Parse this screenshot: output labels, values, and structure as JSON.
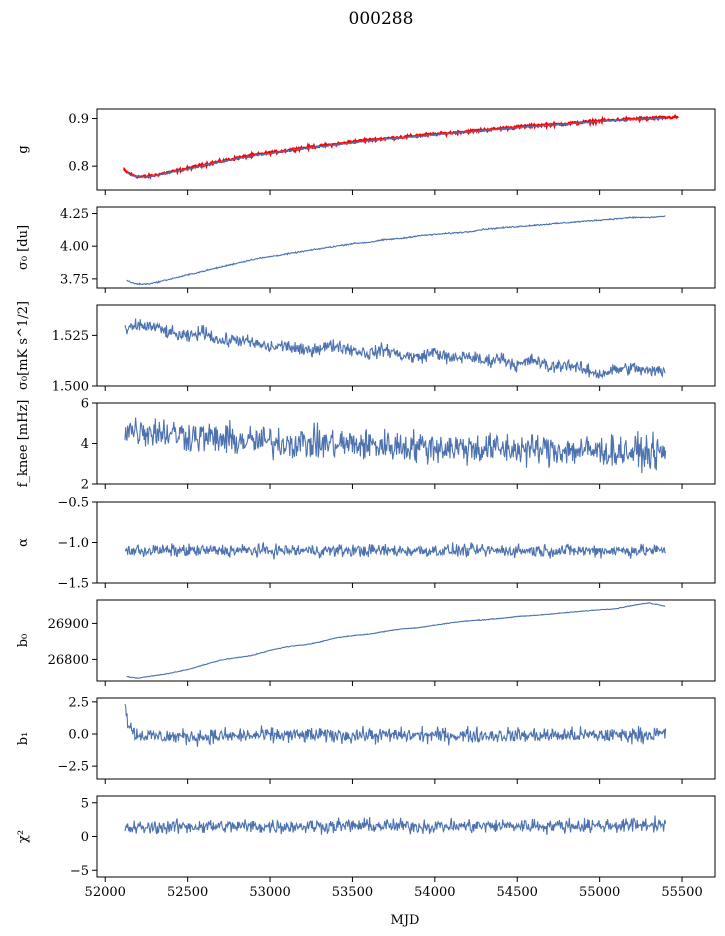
{
  "title": "000288",
  "xlabel": "MJD",
  "colors": {
    "series": "#4c72b0",
    "reference": "#ff0000",
    "axes": "#000000"
  },
  "chart_data": [
    {
      "type": "line",
      "ylabel": "g",
      "xlim": [
        51950,
        55700
      ],
      "ylim": [
        0.75,
        0.92
      ],
      "yticks": [
        0.8,
        0.9
      ],
      "ytick_labels": [
        "0.8",
        "0.9"
      ],
      "series": [
        {
          "color": "#ff0000",
          "x": [
            52110,
            52120,
            52160,
            52200,
            52250,
            52300,
            52400,
            52500,
            52600,
            52700,
            52800,
            52900,
            53000,
            53100,
            53200,
            53300,
            53400,
            53500,
            53600,
            53700,
            53800,
            53900,
            54000,
            54100,
            54200,
            54300,
            54400,
            54500,
            54600,
            54700,
            54800,
            54900,
            55000,
            55100,
            55200,
            55300,
            55400,
            55480
          ],
          "y": [
            0.795,
            0.79,
            0.782,
            0.778,
            0.778,
            0.781,
            0.788,
            0.795,
            0.803,
            0.81,
            0.817,
            0.823,
            0.828,
            0.833,
            0.838,
            0.842,
            0.846,
            0.851,
            0.855,
            0.858,
            0.861,
            0.864,
            0.867,
            0.87,
            0.873,
            0.876,
            0.879,
            0.882,
            0.885,
            0.887,
            0.889,
            0.892,
            0.895,
            0.897,
            0.899,
            0.9,
            0.902,
            0.903
          ],
          "noise": 0.002
        },
        {
          "color": "#4c72b0",
          "x": [
            52130,
            52160,
            52200,
            52250,
            52300,
            52400,
            52500,
            52600,
            52700,
            52800,
            52900,
            53000,
            53100,
            53200,
            53300,
            53400,
            53500,
            53600,
            53700,
            53800,
            53900,
            54000,
            54100,
            54200,
            54300,
            54400,
            54500,
            54600,
            54700,
            54800,
            54900,
            55000,
            55100,
            55200,
            55300,
            55400
          ],
          "y": [
            0.788,
            0.78,
            0.777,
            0.777,
            0.78,
            0.787,
            0.794,
            0.802,
            0.809,
            0.816,
            0.822,
            0.827,
            0.832,
            0.837,
            0.841,
            0.845,
            0.849,
            0.853,
            0.857,
            0.86,
            0.863,
            0.866,
            0.869,
            0.872,
            0.875,
            0.878,
            0.881,
            0.884,
            0.886,
            0.888,
            0.891,
            0.894,
            0.896,
            0.898,
            0.899,
            0.901
          ],
          "noise": 0.001
        }
      ]
    },
    {
      "type": "line",
      "ylabel": "σ₀ [du]",
      "xlim": [
        51950,
        55700
      ],
      "ylim": [
        3.68,
        4.3
      ],
      "yticks": [
        3.75,
        4.0,
        4.25
      ],
      "ytick_labels": [
        "3.75",
        "4.00",
        "4.25"
      ],
      "series": [
        {
          "color": "#4c72b0",
          "x": [
            52130,
            52160,
            52200,
            52250,
            52300,
            52400,
            52500,
            52600,
            52700,
            52800,
            52900,
            53000,
            53100,
            53200,
            53300,
            53400,
            53500,
            53600,
            53700,
            53800,
            53900,
            54000,
            54100,
            54200,
            54300,
            54400,
            54500,
            54600,
            54700,
            54800,
            54900,
            55000,
            55100,
            55200,
            55300,
            55400
          ],
          "y": [
            3.74,
            3.72,
            3.71,
            3.71,
            3.72,
            3.75,
            3.78,
            3.81,
            3.84,
            3.87,
            3.9,
            3.92,
            3.94,
            3.96,
            3.98,
            4.0,
            4.02,
            4.03,
            4.05,
            4.06,
            4.08,
            4.09,
            4.1,
            4.11,
            4.13,
            4.14,
            4.15,
            4.16,
            4.17,
            4.18,
            4.19,
            4.2,
            4.21,
            4.22,
            4.22,
            4.23
          ],
          "noise": 0.004
        }
      ]
    },
    {
      "type": "line",
      "ylabel": "σ₀[mK s^1/2]",
      "xlim": [
        51950,
        55700
      ],
      "ylim": [
        1.5,
        1.54
      ],
      "yticks": [
        1.5,
        1.525
      ],
      "ytick_labels": [
        "1.500",
        "1.525"
      ],
      "series": [
        {
          "color": "#4c72b0",
          "x": [
            52120,
            52200,
            52300,
            52400,
            52500,
            52600,
            52700,
            52800,
            52900,
            53000,
            53100,
            53200,
            53300,
            53400,
            53500,
            53600,
            53700,
            53800,
            53900,
            54000,
            54100,
            54200,
            54300,
            54400,
            54500,
            54600,
            54700,
            54800,
            54900,
            55000,
            55100,
            55200,
            55300,
            55400
          ],
          "y": [
            1.527,
            1.53,
            1.529,
            1.526,
            1.524,
            1.527,
            1.522,
            1.523,
            1.521,
            1.519,
            1.52,
            1.517,
            1.519,
            1.52,
            1.518,
            1.516,
            1.518,
            1.515,
            1.514,
            1.517,
            1.513,
            1.515,
            1.512,
            1.514,
            1.51,
            1.513,
            1.509,
            1.511,
            1.508,
            1.506,
            1.508,
            1.509,
            1.507,
            1.508
          ],
          "noise": 0.0025
        }
      ]
    },
    {
      "type": "line",
      "ylabel": "f_knee [mHz]",
      "xlim": [
        51950,
        55700
      ],
      "ylim": [
        2,
        6
      ],
      "yticks": [
        2,
        4,
        6
      ],
      "ytick_labels": [
        "2",
        "4",
        "6"
      ],
      "series": [
        {
          "color": "#4c72b0",
          "x": [
            52120,
            52300,
            52500,
            52700,
            52900,
            53100,
            53300,
            53500,
            53700,
            53900,
            54100,
            54300,
            54500,
            54700,
            54900,
            55100,
            55300,
            55400
          ],
          "y": [
            4.7,
            4.6,
            4.4,
            4.2,
            4.1,
            4.05,
            4.0,
            3.95,
            3.9,
            3.85,
            3.8,
            3.75,
            3.72,
            3.7,
            3.65,
            3.6,
            3.55,
            3.5
          ],
          "noise": 0.6
        }
      ]
    },
    {
      "type": "line",
      "ylabel": "α",
      "xlim": [
        51950,
        55700
      ],
      "ylim": [
        -1.5,
        -0.5
      ],
      "yticks": [
        -1.5,
        -1.0,
        -0.5
      ],
      "ytick_labels": [
        "−1.5",
        "−1.0",
        "−0.5"
      ],
      "series": [
        {
          "color": "#4c72b0",
          "x": [
            52120,
            52500,
            53000,
            53500,
            54000,
            54500,
            55000,
            55400
          ],
          "y": [
            -1.1,
            -1.1,
            -1.1,
            -1.1,
            -1.1,
            -1.1,
            -1.1,
            -1.1
          ],
          "noise": 0.06
        }
      ]
    },
    {
      "type": "line",
      "ylabel": "b₀",
      "xlim": [
        51950,
        55700
      ],
      "ylim": [
        26740,
        26965
      ],
      "yticks": [
        26800,
        26900
      ],
      "ytick_labels": [
        "26800",
        "26900"
      ],
      "series": [
        {
          "color": "#4c72b0",
          "x": [
            52130,
            52200,
            52300,
            52400,
            52500,
            52600,
            52700,
            52800,
            52900,
            53000,
            53100,
            53200,
            53300,
            53400,
            53500,
            53600,
            53700,
            53800,
            53900,
            54000,
            54100,
            54200,
            54300,
            54400,
            54500,
            54600,
            54700,
            54800,
            54900,
            55000,
            55100,
            55200,
            55300,
            55400
          ],
          "y": [
            26752,
            26748,
            26755,
            26762,
            26772,
            26785,
            26798,
            26805,
            26812,
            26825,
            26835,
            26840,
            26848,
            26860,
            26866,
            26870,
            26878,
            26885,
            26888,
            26895,
            26902,
            26907,
            26910,
            26914,
            26919,
            26922,
            26926,
            26930,
            26934,
            26938,
            26941,
            26950,
            26957,
            26948
          ],
          "noise": 0.8
        }
      ]
    },
    {
      "type": "line",
      "ylabel": "b₁",
      "xlim": [
        51950,
        55700
      ],
      "ylim": [
        -3.5,
        2.8
      ],
      "yticks": [
        -2.5,
        0.0,
        2.5
      ],
      "ytick_labels": [
        "−2.5",
        "0.0",
        "2.5"
      ],
      "series": [
        {
          "color": "#4c72b0",
          "x": [
            52120,
            52140,
            52180,
            52300,
            52600,
            53000,
            53500,
            54000,
            54500,
            55000,
            55400
          ],
          "y": [
            2.2,
            0.8,
            0.0,
            -0.2,
            -0.2,
            -0.1,
            -0.1,
            -0.1,
            -0.1,
            -0.1,
            0.0
          ],
          "noise": 0.45
        }
      ]
    },
    {
      "type": "line",
      "ylabel": "χ²",
      "xlim": [
        51950,
        55700
      ],
      "ylim": [
        -6,
        6
      ],
      "yticks": [
        -5,
        0,
        5
      ],
      "ytick_labels": [
        "−5",
        "0",
        "5"
      ],
      "series": [
        {
          "color": "#4c72b0",
          "x": [
            52120,
            52500,
            53000,
            53500,
            54000,
            54500,
            55000,
            55400
          ],
          "y": [
            1.2,
            1.5,
            1.5,
            1.6,
            1.5,
            1.6,
            1.6,
            1.8
          ],
          "noise": 0.8
        }
      ]
    }
  ],
  "xaxis": {
    "ticks": [
      52000,
      52500,
      53000,
      53500,
      54000,
      54500,
      55000,
      55500
    ],
    "tick_labels": [
      "52000",
      "52500",
      "53000",
      "53500",
      "54000",
      "54500",
      "55000",
      "55500"
    ]
  }
}
